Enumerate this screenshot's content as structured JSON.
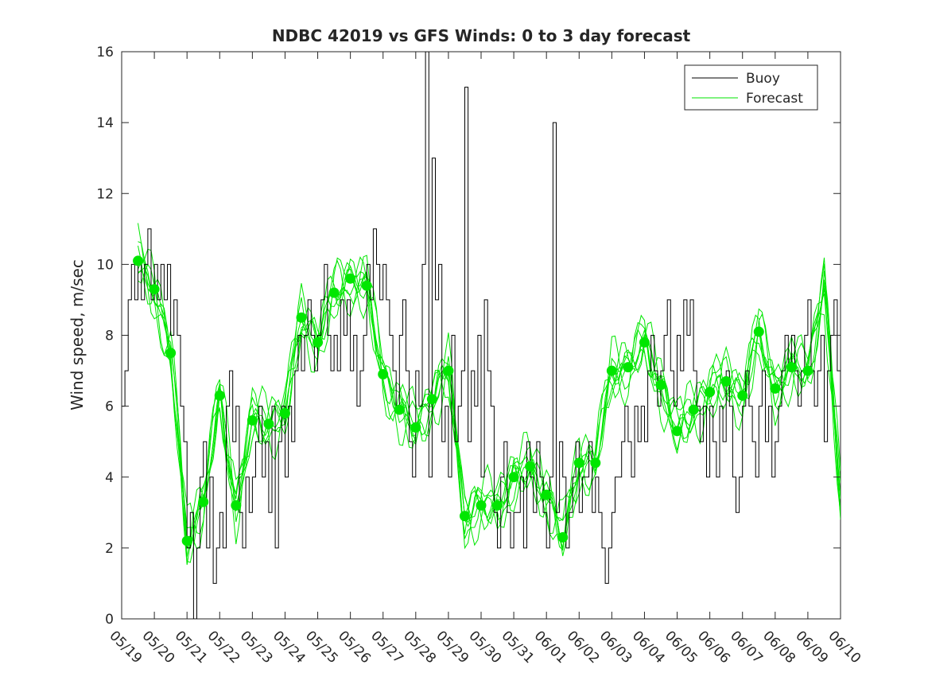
{
  "chart_data": {
    "type": "line",
    "title": "NDBC 42019 vs GFS Winds: 0 to 3 day forecast",
    "xlabel": "",
    "ylabel": "Wind speed, m/sec",
    "xlim": [
      "05/19",
      "06/10"
    ],
    "ylim": [
      0,
      16
    ],
    "x_ticks": [
      "05/19",
      "05/20",
      "05/21",
      "05/22",
      "05/23",
      "05/24",
      "05/25",
      "05/26",
      "05/27",
      "05/28",
      "05/29",
      "05/30",
      "05/31",
      "06/01",
      "06/02",
      "06/03",
      "06/04",
      "06/05",
      "06/06",
      "06/07",
      "06/08",
      "06/09",
      "06/10"
    ],
    "y_ticks": [
      0,
      2,
      4,
      6,
      8,
      10,
      12,
      14,
      16
    ],
    "grid": false,
    "legend_position": "top-right",
    "legend": [
      {
        "label": "Buoy",
        "color": "#000000"
      },
      {
        "label": "Forecast",
        "color": "#00e600"
      }
    ],
    "series": [
      {
        "name": "Buoy",
        "color": "#000000",
        "x_unit": "days after 05/19",
        "x": [
          0.0,
          0.1,
          0.2,
          0.3,
          0.4,
          0.5,
          0.6,
          0.7,
          0.8,
          0.9,
          1.0,
          1.1,
          1.2,
          1.3,
          1.4,
          1.5,
          1.6,
          1.7,
          1.8,
          1.9,
          2.0,
          2.1,
          2.2,
          2.3,
          2.4,
          2.5,
          2.6,
          2.7,
          2.8,
          2.9,
          3.0,
          3.1,
          3.2,
          3.3,
          3.4,
          3.5,
          3.6,
          3.7,
          3.8,
          3.9,
          4.0,
          4.1,
          4.2,
          4.3,
          4.4,
          4.5,
          4.6,
          4.7,
          4.8,
          4.9,
          5.0,
          5.1,
          5.2,
          5.3,
          5.4,
          5.5,
          5.6,
          5.7,
          5.8,
          5.9,
          6.0,
          6.1,
          6.2,
          6.3,
          6.4,
          6.5,
          6.6,
          6.7,
          6.8,
          6.9,
          7.0,
          7.1,
          7.2,
          7.3,
          7.4,
          7.5,
          7.6,
          7.7,
          7.8,
          7.9,
          8.0,
          8.1,
          8.2,
          8.3,
          8.4,
          8.5,
          8.6,
          8.7,
          8.8,
          8.9,
          9.0,
          9.1,
          9.2,
          9.3,
          9.4,
          9.5,
          9.6,
          9.7,
          9.8,
          9.9,
          10.0,
          10.1,
          10.2,
          10.3,
          10.4,
          10.5,
          10.6,
          10.7,
          10.8,
          10.9,
          11.0,
          11.1,
          11.2,
          11.3,
          11.4,
          11.5,
          11.6,
          11.7,
          11.8,
          11.9,
          12.0,
          12.1,
          12.2,
          12.3,
          12.4,
          12.5,
          12.6,
          12.7,
          12.8,
          12.9,
          13.0,
          13.1,
          13.2,
          13.3,
          13.4,
          13.5,
          13.6,
          13.7,
          13.8,
          13.9,
          14.0,
          14.1,
          14.2,
          14.3,
          14.4,
          14.5,
          14.6,
          14.7,
          14.8,
          14.9,
          15.0,
          15.1,
          15.2,
          15.3,
          15.4,
          15.5,
          15.6,
          15.7,
          15.8,
          15.9,
          16.0,
          16.1,
          16.2,
          16.3,
          16.4,
          16.5,
          16.6,
          16.7,
          16.8,
          16.9,
          17.0,
          17.1,
          17.2,
          17.3,
          17.4,
          17.5,
          17.6,
          17.7,
          17.8,
          17.9,
          18.0,
          18.1,
          18.2,
          18.3,
          18.4,
          18.5,
          18.6,
          18.7,
          18.8,
          18.9,
          19.0,
          19.1,
          19.2,
          19.3,
          19.4,
          19.5,
          19.6,
          19.7,
          19.8,
          19.9,
          20.0,
          20.1,
          20.2,
          20.3,
          20.4,
          20.5,
          20.6,
          20.7,
          20.8,
          20.9,
          21.0,
          21.1,
          21.2,
          21.3,
          21.4,
          21.5,
          21.6,
          21.7,
          21.8,
          21.9,
          22.0
        ],
        "values": [
          6,
          7,
          9,
          10,
          9,
          10,
          9,
          10,
          11,
          9,
          10,
          9,
          10,
          9,
          10,
          8,
          9,
          8,
          6,
          5,
          2,
          3,
          0,
          2,
          4,
          5,
          2,
          4,
          1,
          2,
          3,
          2,
          6,
          7,
          5,
          6,
          3,
          2,
          4,
          3,
          4,
          5,
          6,
          4,
          5,
          3,
          6,
          2,
          5,
          6,
          4,
          6,
          5,
          7,
          8,
          7,
          8,
          9,
          8,
          7,
          8,
          9,
          10,
          8,
          7,
          8,
          7,
          9,
          8,
          9,
          7,
          8,
          6,
          7,
          8,
          10,
          9,
          11,
          10,
          9,
          10,
          9,
          8,
          7,
          6,
          8,
          9,
          7,
          5,
          4,
          7,
          6,
          10,
          16,
          4,
          13,
          9,
          10,
          5,
          6,
          4,
          8,
          5,
          6,
          7,
          15,
          5,
          7,
          6,
          8,
          4,
          9,
          7,
          6,
          3,
          2,
          4,
          5,
          3,
          2,
          3,
          3,
          4,
          2,
          5,
          4,
          3,
          5,
          4,
          3,
          2,
          4,
          14,
          3,
          5,
          4,
          2,
          3,
          4,
          5,
          3,
          4,
          4,
          5,
          3,
          4,
          3,
          2,
          1,
          2,
          3,
          4,
          4,
          5,
          6,
          5,
          4,
          6,
          5,
          6,
          5,
          7,
          8,
          7,
          6,
          7,
          8,
          9,
          7,
          6,
          8,
          7,
          9,
          8,
          9,
          7,
          6,
          5,
          6,
          4,
          6,
          5,
          4,
          6,
          5,
          7,
          6,
          4,
          3,
          4,
          6,
          7,
          6,
          5,
          4,
          6,
          7,
          5,
          6,
          4,
          5,
          6,
          7,
          8,
          7,
          8,
          7,
          6,
          7,
          8,
          9,
          7,
          6,
          7,
          8,
          5,
          7,
          8,
          9,
          7,
          6
        ]
      },
      {
        "name": "Forecast",
        "color": "#00e600",
        "x_unit": "days after 05/19",
        "x": [
          0.5,
          1.0,
          1.5,
          2.0,
          2.5,
          3.0,
          3.5,
          4.0,
          4.5,
          5.0,
          5.5,
          6.0,
          6.5,
          7.0,
          7.5,
          8.0,
          8.5,
          9.0,
          9.5,
          10.0,
          10.5,
          11.0,
          11.5,
          12.0,
          12.5,
          13.0,
          13.5,
          14.0,
          14.5,
          15.0,
          15.5,
          16.0,
          16.5,
          17.0,
          17.5,
          18.0,
          18.5,
          19.0,
          19.5,
          20.0,
          20.5,
          21.0,
          21.5,
          22.0
        ],
        "values": [
          10.1,
          9.3,
          7.5,
          2.2,
          3.3,
          6.3,
          3.2,
          5.6,
          5.5,
          5.8,
          8.5,
          7.8,
          9.2,
          9.6,
          9.4,
          6.9,
          5.9,
          5.4,
          6.2,
          7.0,
          2.9,
          3.2,
          3.2,
          4.0,
          4.3,
          3.5,
          2.3,
          4.4,
          4.4,
          7.0,
          7.1,
          7.8,
          6.6,
          5.3,
          5.9,
          6.4,
          6.7,
          6.3,
          8.1,
          6.5,
          7.1,
          7.0,
          9.5,
          3.3
        ]
      }
    ],
    "daily_markers": {
      "color": "#00e600",
      "x_unit": "days after 05/19",
      "x": [
        0.5,
        1.0,
        1.5,
        2.0,
        2.5,
        3.0,
        3.5,
        4.0,
        4.5,
        5.0,
        5.5,
        6.0,
        6.5,
        7.0,
        7.5,
        8.0,
        8.5,
        9.0,
        9.5,
        10.0,
        10.5,
        11.0,
        11.5,
        12.0,
        12.5,
        13.0,
        13.5,
        14.0,
        14.5,
        15.0,
        15.5,
        16.0,
        16.5,
        17.0,
        17.5,
        18.0,
        18.5,
        19.0,
        19.5,
        20.0,
        20.5,
        21.0
      ],
      "values": [
        10.1,
        9.3,
        7.5,
        2.2,
        3.3,
        6.3,
        3.2,
        5.6,
        5.5,
        5.8,
        8.5,
        7.8,
        9.2,
        9.6,
        9.4,
        6.9,
        5.9,
        5.4,
        6.2,
        7.0,
        2.9,
        3.2,
        3.2,
        4.0,
        4.3,
        3.5,
        2.3,
        4.4,
        4.4,
        7.0,
        7.1,
        7.8,
        6.6,
        5.3,
        5.9,
        6.4,
        6.7,
        6.3,
        8.1,
        6.5,
        7.1,
        7.0
      ]
    }
  }
}
